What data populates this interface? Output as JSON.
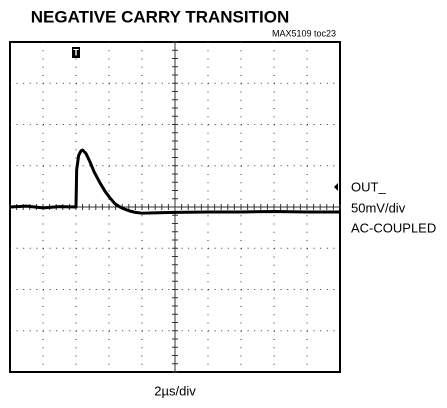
{
  "chart_data": {
    "type": "line",
    "title": "NEGATIVE CARRY TRANSITION",
    "annotations": [
      "MAX5109 toc23"
    ],
    "ylabel_lines": [
      "OUT_",
      "50mV/div",
      "AC-COUPLED"
    ],
    "xlabel": "2µs/div",
    "x": [
      0,
      0.5,
      1,
      1.5,
      2.0,
      2.02,
      2.08,
      2.15,
      2.2,
      2.3,
      2.42,
      2.55,
      2.73,
      2.88,
      3.03,
      3.18,
      3.33,
      3.5,
      3.64,
      3.8,
      4.0,
      4.5,
      5,
      6,
      7,
      8,
      9,
      10
    ],
    "series": [
      {
        "name": "OUT_",
        "color": "#000000",
        "values": [
          0,
          0.02,
          -0.02,
          0.01,
          0,
          0.9,
          1.25,
          1.36,
          1.38,
          1.3,
          1.1,
          0.85,
          0.58,
          0.38,
          0.22,
          0.08,
          0,
          -0.06,
          -0.1,
          -0.13,
          -0.15,
          -0.14,
          -0.13,
          -0.12,
          -0.12,
          -0.11,
          -0.12,
          -0.12
        ]
      }
    ],
    "xlim": [
      0,
      10
    ],
    "ylim": [
      -4,
      4
    ],
    "grid": true
  }
}
